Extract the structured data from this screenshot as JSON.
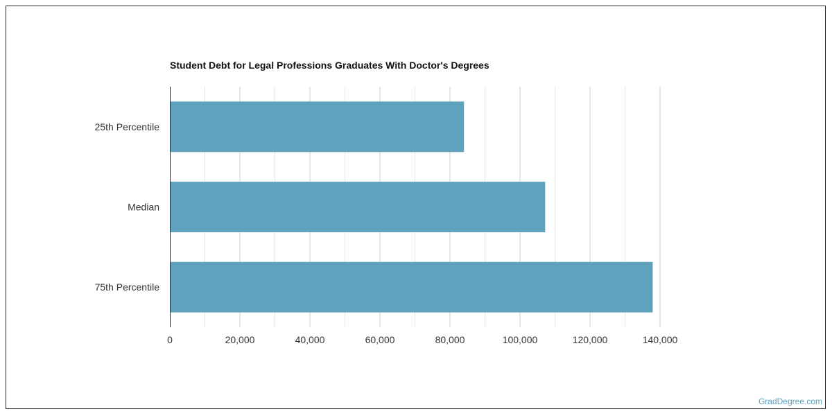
{
  "chart_data": {
    "type": "bar",
    "orientation": "horizontal",
    "title": "Student Debt for Legal Professions Graduates With Doctor's Degrees",
    "categories": [
      "25th Percentile",
      "Median",
      "75th Percentile"
    ],
    "values": [
      84000,
      107200,
      137900
    ],
    "xlim": [
      0,
      140000
    ],
    "xticks": [
      "0",
      "20,000",
      "40,000",
      "60,000",
      "80,000",
      "100,000",
      "120,000",
      "140,000"
    ],
    "grid": true,
    "bar_color": "#5fa2be"
  },
  "watermark": "GradDegree.com"
}
